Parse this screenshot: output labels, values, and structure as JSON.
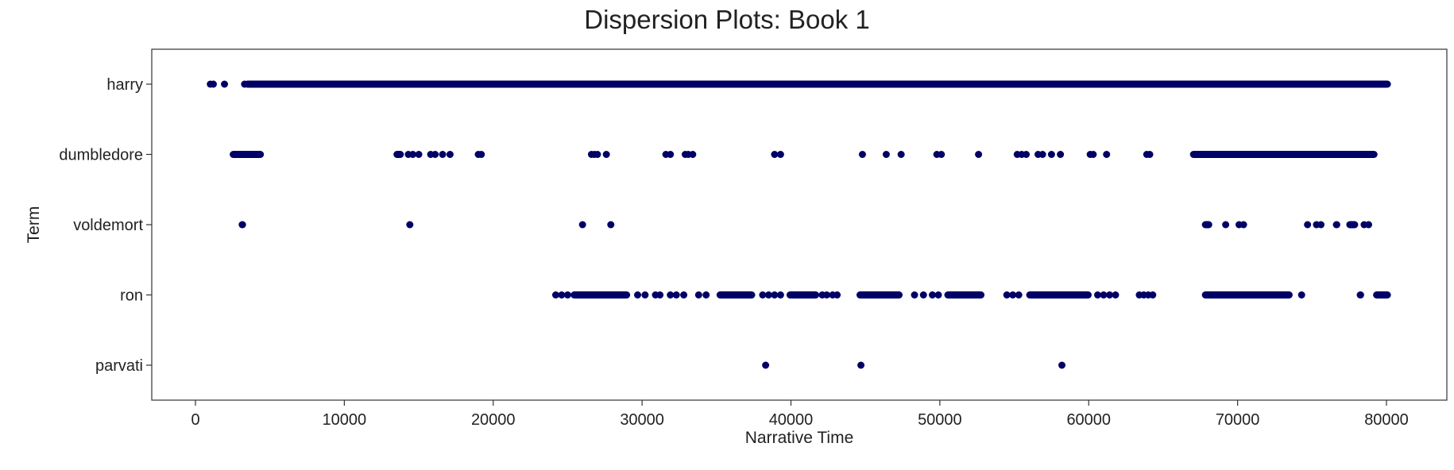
{
  "chart_data": {
    "type": "scatter",
    "title": "Dispersion Plots: Book 1",
    "xlabel": "Narrative Time",
    "ylabel": "Term",
    "xlim": [
      -2900,
      84000
    ],
    "xticks": [
      0,
      10000,
      20000,
      30000,
      40000,
      50000,
      60000,
      70000,
      80000
    ],
    "terms": [
      "harry",
      "dumbledore",
      "voldemort",
      "ron",
      "parvati"
    ],
    "marker_color": "#000066",
    "grid": false,
    "legend": "none",
    "series": [
      {
        "term": "harry",
        "dense_ranges": [
          [
            3300,
            80300
          ]
        ],
        "points": [
          1000,
          1200,
          1950,
          3300,
          3500
        ]
      },
      {
        "term": "dumbledore",
        "dense_ranges": [
          [
            2300,
            4600
          ],
          [
            13300,
            14000
          ],
          [
            66800,
            79400
          ]
        ],
        "points": [
          14300,
          14600,
          15000,
          15800,
          16100,
          16600,
          17100,
          19000,
          19200,
          26600,
          26800,
          27000,
          27600,
          31600,
          31900,
          32900,
          33100,
          33400,
          38900,
          39300,
          44800,
          46400,
          47400,
          49800,
          50100,
          52600,
          55200,
          55500,
          55800,
          56600,
          56900,
          57500,
          58100,
          60100,
          60300,
          61200,
          63900,
          64100,
          67900,
          68500,
          68700,
          69200,
          69500,
          69800,
          71800,
          74500,
          74900,
          75200,
          75900
        ]
      },
      {
        "term": "voldemort",
        "dense_ranges": [
          [
            2900,
            3400
          ],
          [
            67600,
            68300
          ],
          [
            76400,
            76900
          ],
          [
            77300,
            78100
          ]
        ],
        "points": [
          14400,
          26000,
          27900,
          69200,
          70100,
          70400,
          74700,
          75300,
          75600,
          78500,
          78800
        ]
      },
      {
        "term": "ron",
        "dense_ranges": [
          [
            25200,
            29200
          ],
          [
            35000,
            37600
          ],
          [
            39700,
            41900
          ],
          [
            44400,
            47500
          ],
          [
            50300,
            53000
          ],
          [
            55800,
            60200
          ],
          [
            67600,
            73700
          ],
          [
            78000,
            78500
          ],
          [
            79100,
            80300
          ]
        ],
        "points": [
          24200,
          24600,
          25000,
          29700,
          30200,
          30900,
          31200,
          31900,
          32300,
          32800,
          33800,
          34300,
          38100,
          38500,
          38900,
          39300,
          42100,
          42400,
          42800,
          43100,
          48300,
          48900,
          49500,
          49900,
          54500,
          54900,
          55300,
          60600,
          61000,
          61400,
          61800,
          63400,
          63700,
          64000,
          64300,
          74300
        ]
      },
      {
        "term": "parvati",
        "dense_ranges": [],
        "points": [
          38300,
          44700,
          58200
        ]
      }
    ]
  }
}
